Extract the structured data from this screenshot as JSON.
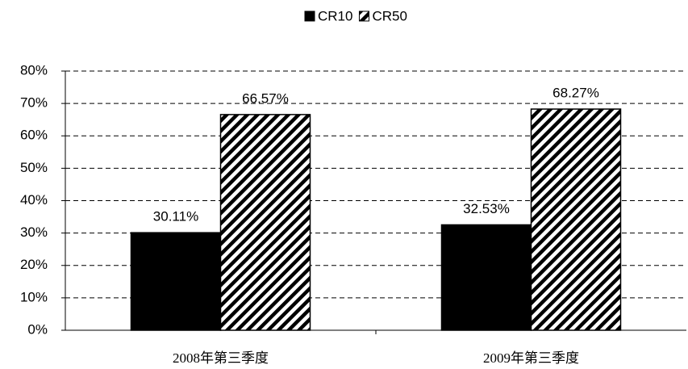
{
  "chart_data": {
    "type": "bar",
    "categories": [
      "2008年第三季度",
      "2009年第三季度"
    ],
    "series": [
      {
        "name": "CR10",
        "color": "#000000",
        "values": [
          30.11,
          32.53
        ],
        "value_labels": [
          "30.11%",
          "32.53%"
        ]
      },
      {
        "name": "CR50",
        "color": "hatch",
        "values": [
          66.57,
          68.27
        ],
        "value_labels": [
          "66.57%",
          "68.27%"
        ]
      }
    ],
    "ylim": [
      0,
      80
    ],
    "yticks": [
      {
        "value": 0,
        "label": "0%"
      },
      {
        "value": 10,
        "label": "10%"
      },
      {
        "value": 20,
        "label": "20%"
      },
      {
        "value": 30,
        "label": "30%"
      },
      {
        "value": 40,
        "label": "40%"
      },
      {
        "value": 50,
        "label": "50%"
      },
      {
        "value": 60,
        "label": "60%"
      },
      {
        "value": 70,
        "label": "70%"
      },
      {
        "value": 80,
        "label": "80%"
      }
    ],
    "grid": true,
    "legend": "top"
  }
}
